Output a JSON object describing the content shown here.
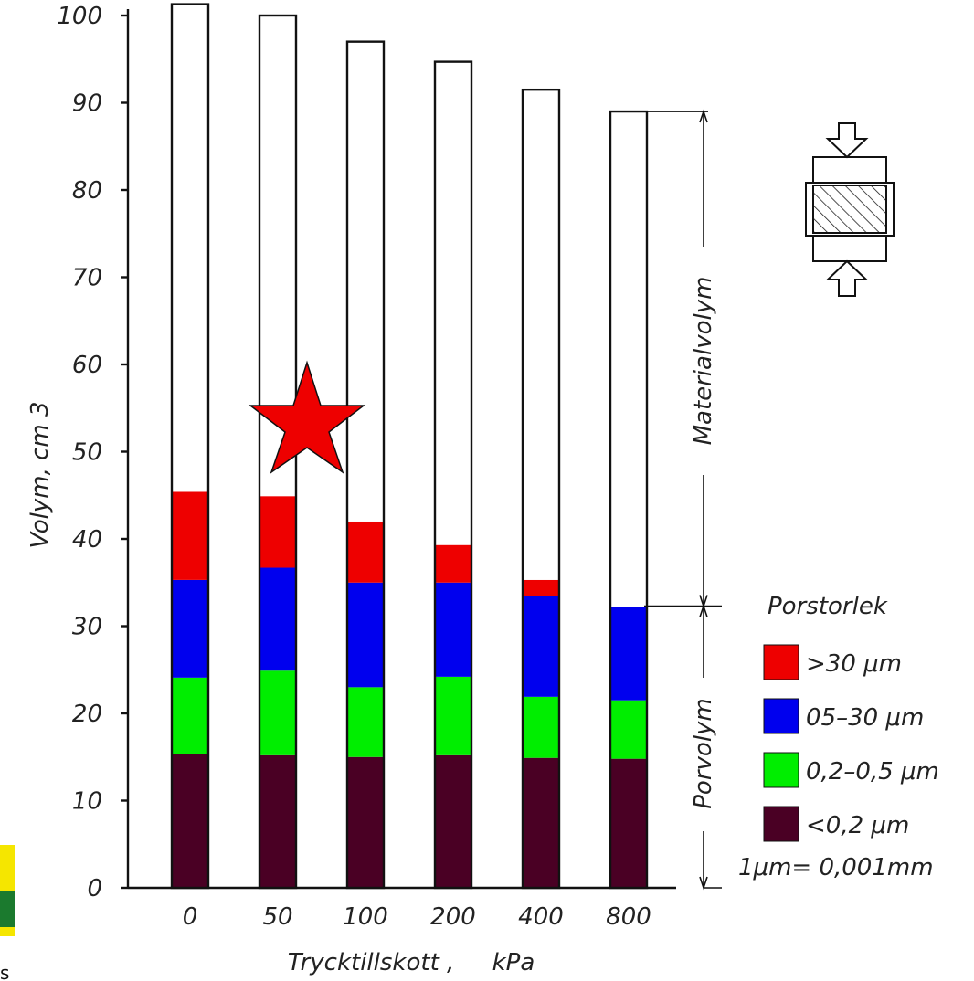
{
  "chart_data": {
    "type": "bar",
    "stacked": true,
    "categories": [
      "0",
      "50",
      "100",
      "200",
      "400",
      "800"
    ],
    "series": [
      {
        "name": "<0,2 μm",
        "color": "#4a0024",
        "values": [
          15.3,
          15.2,
          15.0,
          15.2,
          14.9,
          14.8
        ]
      },
      {
        "name": "0,2–0,5 μm",
        "color": "#00ee00",
        "values": [
          8.8,
          9.7,
          8.0,
          9.0,
          7.0,
          6.7
        ]
      },
      {
        "name": "05–30 μm",
        "color": "#0000ee",
        "values": [
          11.2,
          11.8,
          12.0,
          10.8,
          11.6,
          10.7
        ]
      },
      {
        "name": ">30 μm",
        "color": "#ee0000",
        "values": [
          10.1,
          8.2,
          7.0,
          4.3,
          1.8,
          0
        ]
      },
      {
        "name": "Materialvolym",
        "color": "#ffffff",
        "values": [
          55.9,
          55.1,
          55.0,
          55.4,
          56.2,
          56.8
        ]
      }
    ],
    "totals": [
      101.3,
      100.0,
      97.0,
      94.7,
      91.5,
      89.0
    ],
    "ylim": [
      0,
      100
    ],
    "yticks": [
      0,
      10,
      20,
      30,
      40,
      50,
      60,
      70,
      80,
      90,
      100
    ],
    "xlabel": "Trycktillskott ,     kPa",
    "ylabel": "Volym, cm 3",
    "title": "",
    "legend_title": "Porstorlek",
    "legend": [
      {
        "label": ">30 μm",
        "color": "#ee0000"
      },
      {
        "label": "05–30 μm",
        "color": "#0000ee"
      },
      {
        "label": "0,2–0,5 μm",
        "color": "#00ee00"
      },
      {
        "label": "<0,2 μm",
        "color": "#4a0024"
      }
    ],
    "legend_note": "1μm= 0,001mm",
    "brackets": {
      "material": "Materialvolym",
      "pore": "Porvolym",
      "divider_value": 32.3,
      "top_value": 89.0
    },
    "grid": false,
    "legend_position": "right"
  },
  "overlay": {
    "star_color": "#ee0000"
  }
}
